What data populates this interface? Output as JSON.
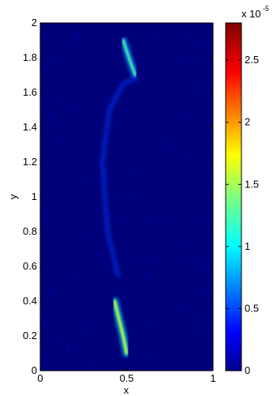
{
  "chart_data": {
    "type": "heatmap",
    "title": "",
    "xlabel": "x",
    "ylabel": "y",
    "xlim": [
      0,
      1
    ],
    "ylim": [
      0,
      2
    ],
    "xticks": [
      0,
      0.5,
      1
    ],
    "xtick_labels": [
      "0",
      "0.5",
      "1"
    ],
    "yticks": [
      0,
      0.2,
      0.4,
      0.6,
      0.8,
      1,
      1.2,
      1.4,
      1.6,
      1.8,
      2
    ],
    "ytick_labels": [
      "0",
      "0.2",
      "0.4",
      "0.6",
      "0.8",
      "1",
      "1.2",
      "1.4",
      "1.6",
      "1.8",
      "2"
    ],
    "colorbar": {
      "colormap": "jet",
      "range": [
        0,
        2.8e-05
      ],
      "ticks": [
        0,
        0.5,
        1,
        1.5,
        2,
        2.5
      ],
      "tick_labels": [
        "0",
        "0.5",
        "1",
        "1.5",
        "2",
        "2.5"
      ],
      "exponent_label": "x 10",
      "exponent_power": "-5"
    },
    "features": [
      {
        "name": "lower streak",
        "points": [
          [
            0.43,
            0.4
          ],
          [
            0.46,
            0.28
          ],
          [
            0.48,
            0.2
          ],
          [
            0.5,
            0.1
          ]
        ],
        "peak": 1.7e-05
      },
      {
        "name": "upper streak",
        "points": [
          [
            0.48,
            1.9
          ],
          [
            0.5,
            1.84
          ],
          [
            0.52,
            1.78
          ],
          [
            0.55,
            1.7
          ]
        ],
        "peak": 1.3e-05
      },
      {
        "name": "faint arc",
        "points": [
          [
            0.45,
            0.55
          ],
          [
            0.39,
            0.8
          ],
          [
            0.36,
            1.2
          ],
          [
            0.4,
            1.5
          ],
          [
            0.48,
            1.65
          ],
          [
            0.55,
            1.68
          ]
        ],
        "peak": 2.5e-06
      }
    ],
    "grid": false,
    "legend": "none"
  }
}
